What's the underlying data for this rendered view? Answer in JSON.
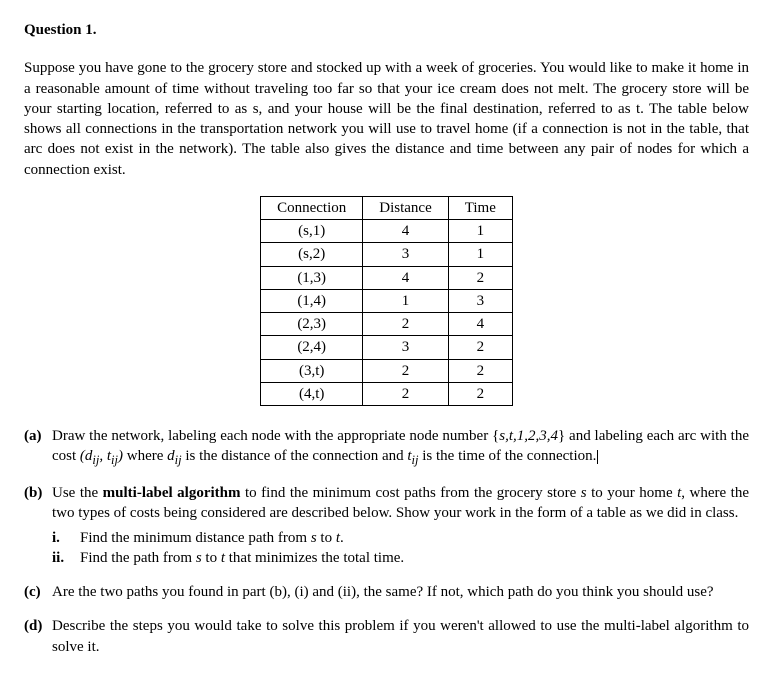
{
  "title": "Question 1.",
  "intro": "Suppose you have gone to the grocery store and stocked up with a week of groceries. You would like to make it home in a reasonable amount of time without traveling too far so that your ice cream does not melt. The grocery store will be your starting location, referred to as s, and your house will be the final destination, referred to as t. The table below shows all connections in the transportation network you will use to travel home (if a connection is not in the table, that arc does not exist in the network). The table also gives the distance and time between any pair of nodes for which a connection exist.",
  "table": {
    "headers": [
      "Connection",
      "Distance",
      "Time"
    ],
    "rows": [
      [
        "(s,1)",
        "4",
        "1"
      ],
      [
        "(s,2)",
        "3",
        "1"
      ],
      [
        "(1,3)",
        "4",
        "2"
      ],
      [
        "(1,4)",
        "1",
        "3"
      ],
      [
        "(2,3)",
        "2",
        "4"
      ],
      [
        "(2,4)",
        "3",
        "2"
      ],
      [
        "(3,t)",
        "2",
        "2"
      ],
      [
        "(4,t)",
        "2",
        "2"
      ]
    ]
  },
  "parts": {
    "a": {
      "label": "(a)",
      "pre": "Draw the network, labeling each node with the appropriate node number {",
      "set": "s,t,1,2,3,4",
      "mid1": "} and labeling each arc with the cost ",
      "cost": "(d",
      "sub1": "ij",
      "mid2": ", t",
      "sub2": "ij",
      "mid3": ")",
      "mid4": " where ",
      "d": "d",
      "sub3": "ij",
      "mid5": " is the distance of the connection and ",
      "t": "t",
      "sub4": "ij",
      "post": " is the time of the connection."
    },
    "b": {
      "label": "(b)",
      "text1": "Use the ",
      "bold": "multi-label algorithm",
      "text2": " to find the minimum cost paths from the grocery store ",
      "s": "s",
      "text3": " to your home ",
      "t": "t",
      "text4": ", where the two types of costs being considered are described below. Show your work in the form of a table as we did in class.",
      "i": {
        "label": "i.",
        "text1": "Find the minimum distance path from ",
        "s": "s",
        "text2": " to ",
        "t": "t",
        "text3": "."
      },
      "ii": {
        "label": "ii.",
        "text1": "Find the path from ",
        "s": "s",
        "text2": " to ",
        "t": "t",
        "text3": " that minimizes the total time."
      }
    },
    "c": {
      "label": "(c)",
      "text": "Are the two paths you found in part (b), (i) and (ii), the same? If not, which path do you think you should use?"
    },
    "d": {
      "label": "(d)",
      "text": "Describe the steps you would take to solve this problem if you weren't allowed to use the multi-label algorithm to solve it."
    }
  }
}
